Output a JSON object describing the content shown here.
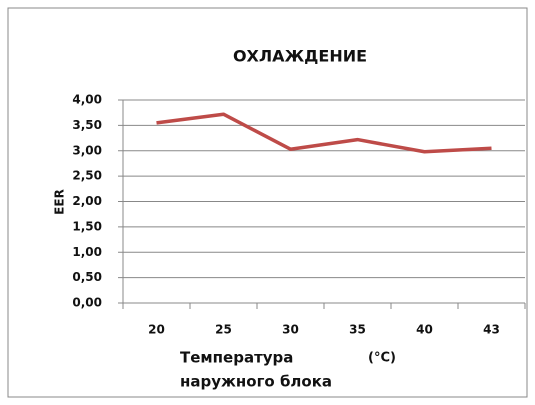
{
  "chart_data": {
    "type": "line",
    "title": "ОХЛАЖДЕНИЕ",
    "y_label": "EER",
    "x_label_lines": [
      "Температура",
      "(°C)",
      "наружного блока"
    ],
    "categories": [
      "20",
      "25",
      "30",
      "35",
      "40",
      "43"
    ],
    "series": [
      {
        "name": "EER",
        "color": "#be4b48",
        "values": [
          3.55,
          3.72,
          3.03,
          3.22,
          2.98,
          3.05
        ]
      }
    ],
    "ylim": [
      0,
      4
    ],
    "yticks": [
      {
        "value": 0,
        "label": "0,00"
      },
      {
        "value": 0.5,
        "label": "0,50"
      },
      {
        "value": 1,
        "label": "1,00"
      },
      {
        "value": 1.5,
        "label": "1,50"
      },
      {
        "value": 2,
        "label": "2,00"
      },
      {
        "value": 2.5,
        "label": "2,50"
      },
      {
        "value": 3,
        "label": "3,00"
      },
      {
        "value": 3.5,
        "label": "3,50"
      },
      {
        "value": 4,
        "label": "4,00"
      }
    ],
    "grid": true
  }
}
